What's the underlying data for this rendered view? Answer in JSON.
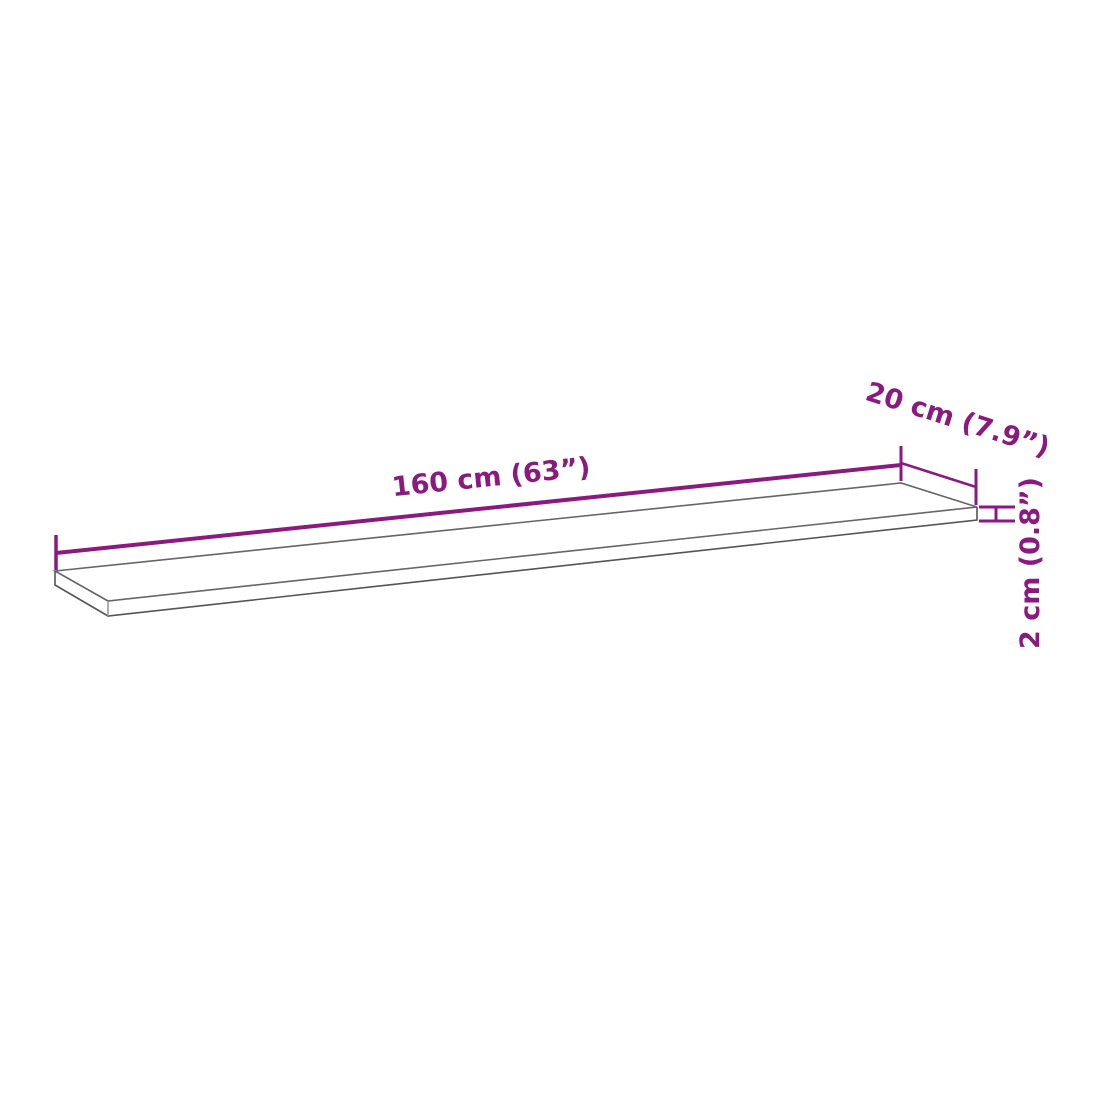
{
  "dimensions": {
    "length": "160 cm (63”)",
    "depth": "20 cm (7.9”)",
    "thickness": "2 cm (0.8”)"
  },
  "colors": {
    "dimension": "#8a1a80",
    "outline": "#555555"
  }
}
